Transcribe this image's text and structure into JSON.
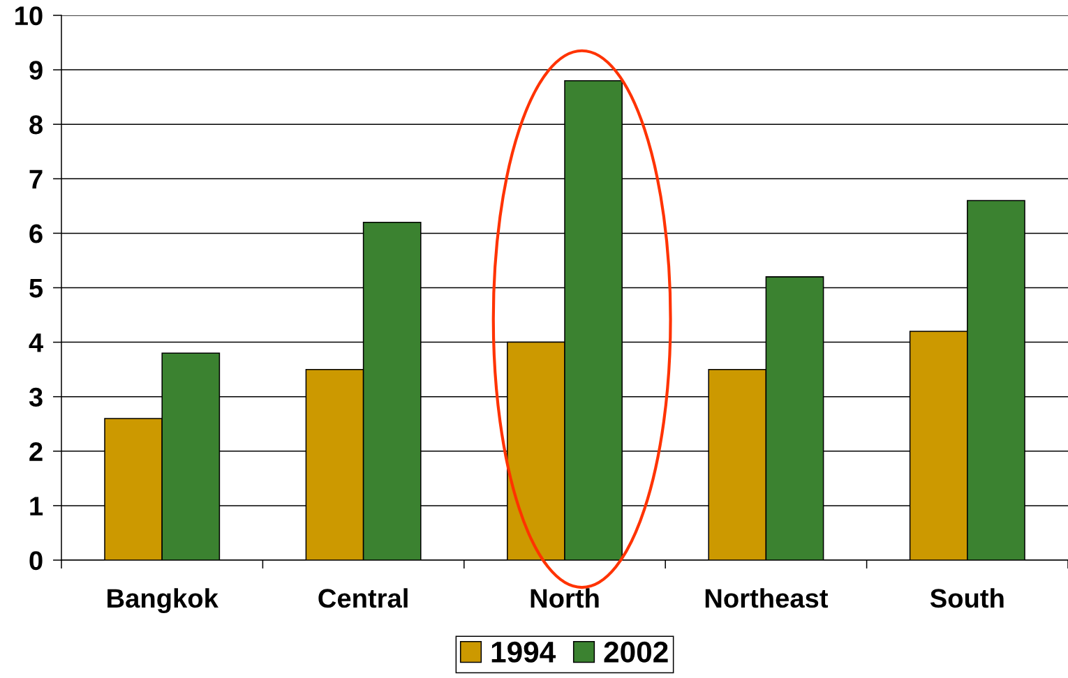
{
  "chart_data": {
    "type": "bar",
    "categories": [
      "Bangkok",
      "Central",
      "North",
      "Northeast",
      "South"
    ],
    "series": [
      {
        "name": "1994",
        "color": "#cc9900",
        "values": [
          2.6,
          3.5,
          4.0,
          3.5,
          4.2
        ]
      },
      {
        "name": "2002",
        "color": "#3b8230",
        "values": [
          3.8,
          6.2,
          8.8,
          5.2,
          6.6
        ]
      }
    ],
    "ylim": [
      0,
      10
    ],
    "yticks": [
      0,
      1,
      2,
      3,
      4,
      5,
      6,
      7,
      8,
      9,
      10
    ],
    "grid": "y",
    "legend": "bottom"
  }
}
